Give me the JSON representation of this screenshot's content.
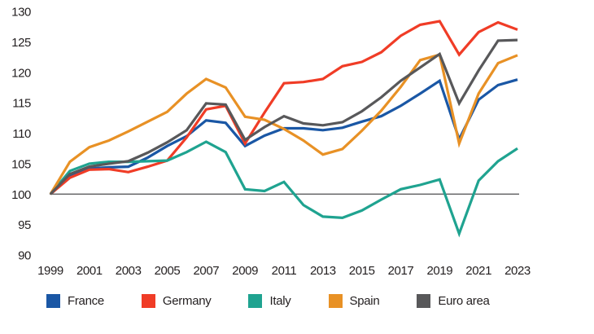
{
  "chart_data": {
    "type": "line",
    "title": "",
    "xlabel": "",
    "ylabel": "",
    "x": [
      1999,
      2000,
      2001,
      2002,
      2003,
      2004,
      2005,
      2006,
      2007,
      2008,
      2009,
      2010,
      2011,
      2012,
      2013,
      2014,
      2015,
      2016,
      2017,
      2018,
      2019,
      2020,
      2021,
      2022,
      2023
    ],
    "xtick_labels": [
      "1999",
      "2001",
      "2003",
      "2005",
      "2007",
      "2009",
      "2011",
      "2013",
      "2015",
      "2017",
      "2019",
      "2021",
      "2023"
    ],
    "ylim": [
      90,
      130
    ],
    "yticks": [
      130,
      125,
      120,
      115,
      110,
      105,
      100,
      95,
      90
    ],
    "reference_line": 100,
    "grid": false,
    "legend_position": "bottom",
    "axis_text_color": "#231f20",
    "reference_line_color": "#4d4d4f",
    "series": [
      {
        "name": "France",
        "color": "#1a57a5",
        "values": [
          100,
          103.0,
          104.2,
          104.4,
          104.5,
          106.0,
          107.9,
          109.5,
          112.1,
          111.7,
          107.9,
          109.6,
          110.8,
          110.8,
          110.5,
          110.9,
          111.9,
          112.8,
          114.5,
          116.5,
          118.6,
          109.0,
          115.5,
          117.9,
          118.8
        ]
      },
      {
        "name": "Germany",
        "color": "#f03c26",
        "values": [
          100,
          102.7,
          104.0,
          104.1,
          103.6,
          104.5,
          105.5,
          109.3,
          113.9,
          114.5,
          108.3,
          113.4,
          118.2,
          118.4,
          118.9,
          121.0,
          121.7,
          123.3,
          126.0,
          127.8,
          128.4,
          122.9,
          126.6,
          128.2,
          127.0
        ]
      },
      {
        "name": "Italy",
        "color": "#1fa390",
        "values": [
          100,
          103.8,
          105.0,
          105.3,
          105.3,
          105.4,
          105.5,
          106.9,
          108.6,
          106.9,
          100.8,
          100.5,
          102.0,
          98.2,
          96.3,
          96.1,
          97.3,
          99.1,
          100.8,
          101.5,
          102.4,
          93.5,
          102.2,
          105.4,
          107.5
        ]
      },
      {
        "name": "Spain",
        "color": "#e89125",
        "values": [
          100,
          105.3,
          107.7,
          108.8,
          110.3,
          111.9,
          113.5,
          116.5,
          118.9,
          117.5,
          112.7,
          112.2,
          110.7,
          108.8,
          106.5,
          107.4,
          110.4,
          113.7,
          117.6,
          122.0,
          122.9,
          108.3,
          116.5,
          121.5,
          122.8
        ]
      },
      {
        "name": "Euro area",
        "color": "#58585a",
        "values": [
          100,
          103.3,
          104.5,
          105.0,
          105.4,
          106.8,
          108.5,
          110.5,
          114.9,
          114.7,
          108.9,
          111.0,
          112.8,
          111.6,
          111.3,
          111.8,
          113.6,
          115.9,
          118.6,
          120.8,
          123.0,
          114.9,
          120.3,
          125.2,
          125.3
        ]
      }
    ]
  }
}
